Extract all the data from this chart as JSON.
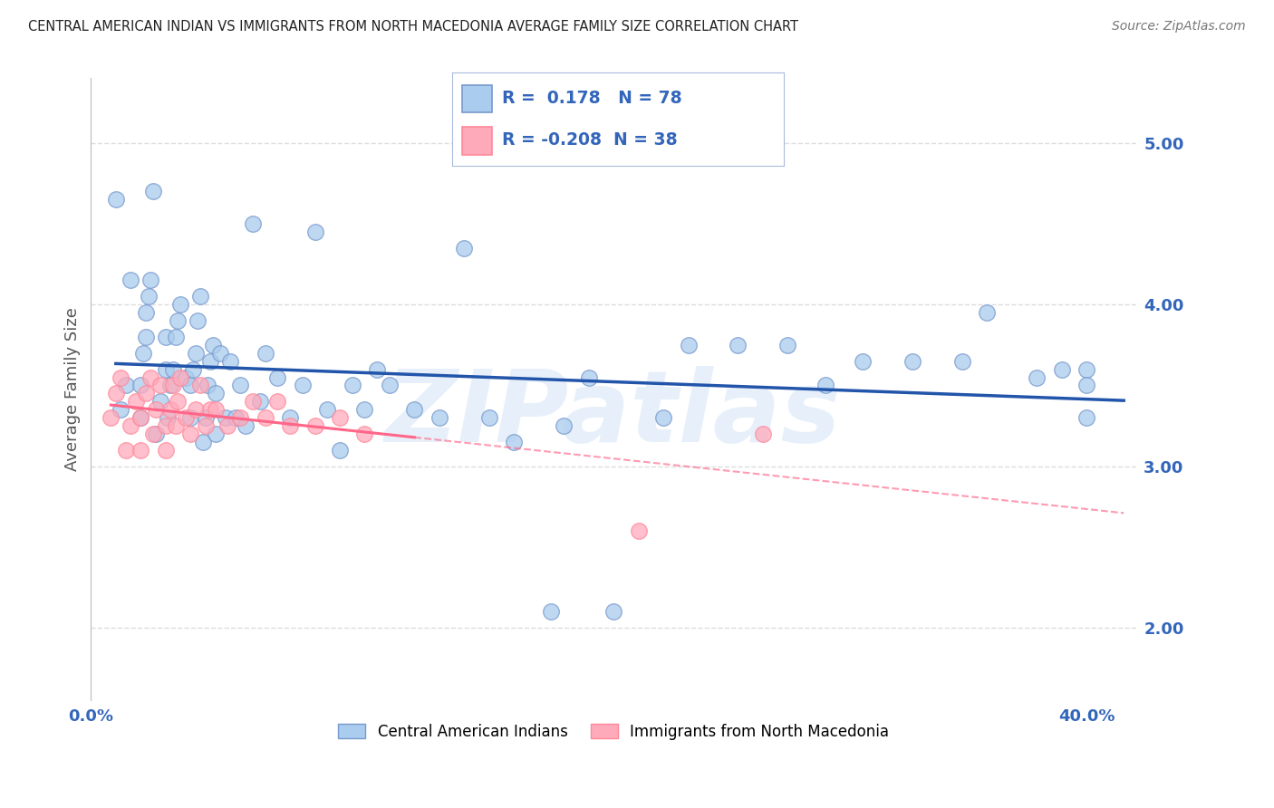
{
  "title": "CENTRAL AMERICAN INDIAN VS IMMIGRANTS FROM NORTH MACEDONIA AVERAGE FAMILY SIZE CORRELATION CHART",
  "source": "Source: ZipAtlas.com",
  "ylabel": "Average Family Size",
  "xlim": [
    0.0,
    0.42
  ],
  "ylim": [
    1.55,
    5.4
  ],
  "yticks": [
    2.0,
    3.0,
    4.0,
    5.0
  ],
  "ytick_labels": [
    "2.00",
    "3.00",
    "4.00",
    "5.00"
  ],
  "blue_R": 0.178,
  "blue_N": 78,
  "pink_R": -0.208,
  "pink_N": 38,
  "blue_scatter_color": "#AACCEE",
  "blue_edge_color": "#7799CC",
  "pink_scatter_color": "#FFAABB",
  "pink_edge_color": "#FF8899",
  "blue_line_color": "#2255AA",
  "pink_line_color": "#FF6688",
  "watermark_text": "ZIPatlas",
  "legend1": "Central American Indians",
  "legend2": "Immigrants from North Macedonia",
  "background_color": "#FFFFFF",
  "grid_color": "#DDDDDD",
  "title_color": "#222222",
  "right_tick_color": "#3366BB",
  "blue_x": [
    0.01,
    0.012,
    0.014,
    0.016,
    0.02,
    0.02,
    0.021,
    0.022,
    0.022,
    0.023,
    0.024,
    0.025,
    0.026,
    0.028,
    0.03,
    0.03,
    0.031,
    0.032,
    0.033,
    0.034,
    0.035,
    0.036,
    0.038,
    0.04,
    0.04,
    0.041,
    0.042,
    0.043,
    0.044,
    0.045,
    0.046,
    0.047,
    0.048,
    0.049,
    0.05,
    0.05,
    0.052,
    0.054,
    0.056,
    0.058,
    0.06,
    0.062,
    0.065,
    0.068,
    0.07,
    0.075,
    0.08,
    0.085,
    0.09,
    0.095,
    0.1,
    0.105,
    0.11,
    0.115,
    0.12,
    0.13,
    0.14,
    0.15,
    0.16,
    0.17,
    0.185,
    0.19,
    0.2,
    0.21,
    0.23,
    0.24,
    0.26,
    0.28,
    0.295,
    0.31,
    0.33,
    0.35,
    0.36,
    0.38,
    0.39,
    0.4,
    0.4,
    0.4
  ],
  "blue_y": [
    4.65,
    3.35,
    3.5,
    4.15,
    3.3,
    3.5,
    3.7,
    3.8,
    3.95,
    4.05,
    4.15,
    4.7,
    3.2,
    3.4,
    3.6,
    3.8,
    3.3,
    3.5,
    3.6,
    3.8,
    3.9,
    4.0,
    3.55,
    3.3,
    3.5,
    3.6,
    3.7,
    3.9,
    4.05,
    3.15,
    3.3,
    3.5,
    3.65,
    3.75,
    3.2,
    3.45,
    3.7,
    3.3,
    3.65,
    3.3,
    3.5,
    3.25,
    4.5,
    3.4,
    3.7,
    3.55,
    3.3,
    3.5,
    4.45,
    3.35,
    3.1,
    3.5,
    3.35,
    3.6,
    3.5,
    3.35,
    3.3,
    4.35,
    3.3,
    3.15,
    2.1,
    3.25,
    3.55,
    2.1,
    3.3,
    3.75,
    3.75,
    3.75,
    3.5,
    3.65,
    3.65,
    3.65,
    3.95,
    3.55,
    3.6,
    3.6,
    3.5,
    3.3
  ],
  "pink_x": [
    0.008,
    0.01,
    0.012,
    0.014,
    0.016,
    0.018,
    0.02,
    0.02,
    0.022,
    0.024,
    0.025,
    0.026,
    0.028,
    0.03,
    0.03,
    0.032,
    0.033,
    0.034,
    0.035,
    0.036,
    0.038,
    0.04,
    0.042,
    0.044,
    0.046,
    0.048,
    0.05,
    0.055,
    0.06,
    0.065,
    0.07,
    0.075,
    0.08,
    0.09,
    0.1,
    0.11,
    0.22,
    0.27
  ],
  "pink_y": [
    3.3,
    3.45,
    3.55,
    3.1,
    3.25,
    3.4,
    3.1,
    3.3,
    3.45,
    3.55,
    3.2,
    3.35,
    3.5,
    3.1,
    3.25,
    3.35,
    3.5,
    3.25,
    3.4,
    3.55,
    3.3,
    3.2,
    3.35,
    3.5,
    3.25,
    3.35,
    3.35,
    3.25,
    3.3,
    3.4,
    3.3,
    3.4,
    3.25,
    3.25,
    3.3,
    3.2,
    2.6,
    3.2
  ]
}
